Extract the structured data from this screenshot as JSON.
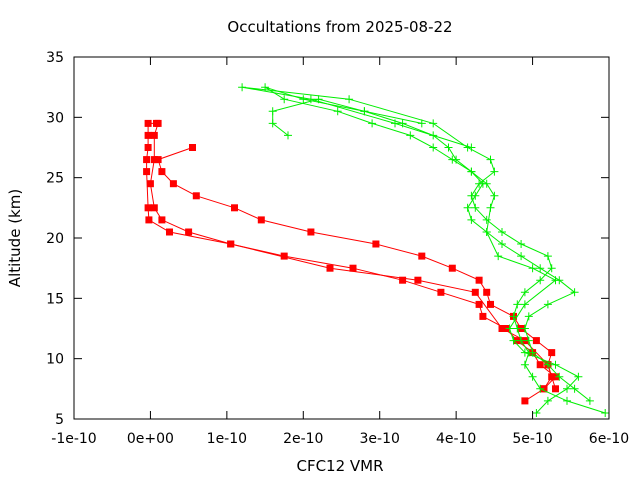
{
  "chart_data": {
    "type": "line",
    "title": "Occultations from 2025-08-22",
    "xlabel": "CFC12 VMR",
    "ylabel": "Altitude (km)",
    "xlim": [
      -1e-10,
      6e-10
    ],
    "ylim": [
      5,
      35
    ],
    "x_ticks": [
      -1e-10,
      0,
      1e-10,
      2e-10,
      3e-10,
      4e-10,
      5e-10,
      6e-10
    ],
    "x_tick_labels": [
      "-1e-10",
      "0e+00",
      "1e-10",
      "2e-10",
      "3e-10",
      "4e-10",
      "5e-10",
      "6e-10"
    ],
    "y_ticks": [
      5,
      10,
      15,
      20,
      25,
      30,
      35
    ],
    "y_tick_labels": [
      "5",
      "10",
      "15",
      "20",
      "25",
      "30",
      "35"
    ],
    "grid": false,
    "legend": "none",
    "series": [
      {
        "color": "#ff0000",
        "marker": "square",
        "x": [
          4.9e-10,
          5.15e-10,
          5.25e-10,
          5.2e-10,
          5.25e-10,
          5.05e-10,
          4.85e-10,
          4.75e-10,
          4.45e-10,
          4.4e-10,
          4.3e-10,
          3.95e-10,
          3.55e-10,
          2.95e-10,
          2.1e-10,
          1.45e-10,
          1.1e-10,
          6e-11,
          3e-11,
          1.5e-11,
          1e-11,
          5.5e-11
        ],
        "y": [
          6.5,
          7.5,
          8.5,
          9.5,
          10.5,
          11.5,
          12.5,
          13.5,
          14.5,
          15.5,
          16.5,
          17.5,
          18.5,
          19.5,
          20.5,
          21.5,
          22.5,
          23.5,
          24.5,
          25.5,
          26.5,
          27.5
        ]
      },
      {
        "color": "#ff0000",
        "marker": "square",
        "x": [
          5.15e-10,
          5.3e-10,
          5.1e-10,
          5e-10,
          4.8e-10,
          4.65e-10,
          4.35e-10,
          4.3e-10,
          3.8e-10,
          3.3e-10,
          2.65e-10,
          1.75e-10,
          1.05e-10,
          5e-11,
          1.5e-11,
          5e-12,
          0.0,
          5e-12,
          5e-12,
          1e-11
        ],
        "y": [
          7.5,
          8.5,
          9.5,
          10.5,
          11.5,
          12.5,
          13.5,
          14.5,
          15.5,
          16.5,
          17.5,
          18.5,
          19.5,
          20.5,
          21.5,
          22.5,
          24.5,
          26.5,
          28.5,
          29.5
        ]
      },
      {
        "color": "#ff0000",
        "marker": "square",
        "x": [
          5.3e-10,
          5.2e-10,
          4.9e-10,
          4.6e-10,
          4.25e-10,
          3.5e-10,
          2.35e-10,
          1.05e-10,
          2.5e-11,
          -2e-12,
          -3e-12,
          -5e-12,
          -5e-12,
          -3e-12,
          -3e-12,
          -3e-12,
          8e-12
        ],
        "y": [
          7.5,
          9.5,
          11.5,
          12.5,
          15.5,
          16.5,
          17.5,
          19.5,
          20.5,
          21.5,
          22.5,
          25.5,
          26.5,
          27.5,
          28.5,
          29.5,
          29.5
        ]
      },
      {
        "color": "#00ee00",
        "marker": "plus",
        "x": [
          5.95e-10,
          5.45e-10,
          5.1e-10,
          5e-10,
          4.9e-10,
          4.95e-10,
          4.85e-10,
          4.8e-10,
          4.75e-10,
          4.8e-10,
          4.9e-10,
          5.1e-10,
          5.25e-10,
          5.2e-10,
          4.85e-10,
          4.6e-10,
          4.4e-10,
          4.25e-10,
          4.2e-10,
          4.3e-10,
          4.5e-10,
          4.45e-10,
          4.15e-10,
          3.7e-10,
          2.6e-10,
          1.2e-10,
          2.1e-10,
          3.2e-10,
          4.2e-10
        ],
        "y": [
          5.5,
          6.5,
          7.5,
          8.5,
          9.5,
          10.5,
          11.5,
          12.5,
          13.5,
          14.5,
          15.5,
          16.5,
          17.5,
          18.5,
          19.5,
          20.5,
          21.5,
          22.5,
          23.5,
          24.5,
          25.5,
          26.5,
          27.5,
          29.5,
          31.5,
          32.5,
          31.5,
          29.5,
          27.5
        ]
      },
      {
        "color": "#00ee00",
        "marker": "plus",
        "x": [
          5.75e-10,
          5.55e-10,
          5.35e-10,
          5.2e-10,
          5e-10,
          4.95e-10,
          4.9e-10,
          4.95e-10,
          5.2e-10,
          5.55e-10,
          5.35e-10,
          5.1e-10,
          4.85e-10,
          4.6e-10,
          4.4e-10,
          4.2e-10,
          4.15e-10,
          4.25e-10,
          4.35e-10,
          4.2e-10,
          4e-10,
          3.9e-10,
          3.7e-10,
          3.3e-10,
          2.8e-10,
          2.2e-10,
          1.6e-10,
          1.6e-10,
          1.8e-10
        ],
        "y": [
          6.5,
          7.5,
          8.5,
          9.5,
          10.5,
          11.5,
          12.5,
          13.5,
          14.5,
          15.5,
          16.5,
          17.5,
          18.5,
          19.5,
          20.5,
          21.5,
          22.5,
          23.5,
          24.5,
          25.5,
          26.5,
          27.5,
          28.5,
          29.5,
          30.5,
          31.5,
          30.5,
          29.5,
          28.5
        ]
      },
      {
        "color": "#00ee00",
        "marker": "plus",
        "x": [
          5.05e-10,
          5.2e-10,
          5.45e-10,
          5.6e-10,
          5.3e-10,
          4.9e-10,
          4.75e-10,
          4.7e-10,
          4.9e-10,
          5.3e-10,
          5e-10,
          4.55e-10,
          4.4e-10,
          4.45e-10,
          4.5e-10,
          4.4e-10,
          4.2e-10,
          3.95e-10,
          3.7e-10,
          3.4e-10,
          2.9e-10,
          2.45e-10,
          1.75e-10,
          1.5e-10,
          2e-10,
          2.8e-10,
          3.55e-10
        ],
        "y": [
          5.5,
          6.5,
          7.5,
          8.5,
          9.5,
          10.5,
          11.5,
          12.5,
          14.5,
          16.5,
          17.5,
          18.5,
          20.5,
          22.5,
          23.5,
          24.5,
          25.5,
          26.5,
          27.5,
          28.5,
          29.5,
          30.5,
          31.5,
          32.5,
          31.5,
          30.5,
          29.5
        ]
      }
    ]
  }
}
